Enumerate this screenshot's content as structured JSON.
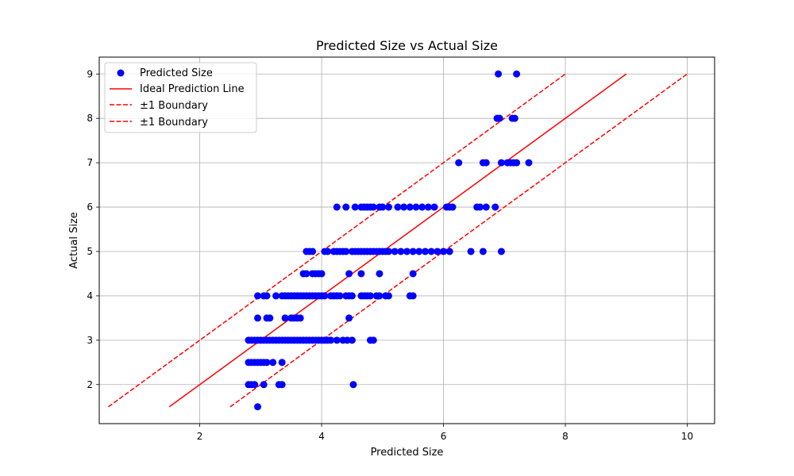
{
  "chart_data": {
    "type": "scatter",
    "title": "Predicted Size vs Actual Size",
    "xlabel": "Predicted Size",
    "ylabel": "Actual Size",
    "xlim": [
      0.35,
      10.45
    ],
    "ylim": [
      1.12,
      9.38
    ],
    "xticks": [
      2,
      4,
      6,
      8,
      10
    ],
    "yticks": [
      2,
      3,
      4,
      5,
      6,
      7,
      8,
      9
    ],
    "grid": true,
    "legend_position": "top-left",
    "legend": [
      {
        "label": "Predicted Size",
        "style": "marker"
      },
      {
        "label": "Ideal Prediction Line",
        "style": "solid"
      },
      {
        "label": "±1 Boundary",
        "style": "dashed"
      },
      {
        "label": "±1 Boundary",
        "style": "dashed"
      }
    ],
    "colors": {
      "points": "#0000ff",
      "lines": "#ff0000"
    },
    "lines": [
      {
        "name": "Ideal Prediction Line",
        "style": "solid",
        "x": [
          1.5,
          9.0
        ],
        "y": [
          1.5,
          9.0
        ]
      },
      {
        "name": "+1 Boundary",
        "style": "dashed",
        "x": [
          0.5,
          8.0
        ],
        "y": [
          1.5,
          9.0
        ]
      },
      {
        "name": "-1 Boundary",
        "style": "dashed",
        "x": [
          2.5,
          10.0
        ],
        "y": [
          1.5,
          9.0
        ]
      }
    ],
    "series": [
      {
        "name": "Predicted Size",
        "points": [
          [
            2.95,
            1.5
          ],
          [
            2.8,
            2
          ],
          [
            2.85,
            2
          ],
          [
            2.9,
            2
          ],
          [
            3.05,
            2
          ],
          [
            3.3,
            2
          ],
          [
            3.35,
            2
          ],
          [
            4.52,
            2
          ],
          [
            2.8,
            2.5
          ],
          [
            2.85,
            2.5
          ],
          [
            2.9,
            2.5
          ],
          [
            2.95,
            2.5
          ],
          [
            3.0,
            2.5
          ],
          [
            3.05,
            2.5
          ],
          [
            3.1,
            2.5
          ],
          [
            3.2,
            2.5
          ],
          [
            3.35,
            2.5
          ],
          [
            2.8,
            3
          ],
          [
            2.85,
            3
          ],
          [
            2.9,
            3
          ],
          [
            2.95,
            3
          ],
          [
            3.0,
            3
          ],
          [
            3.05,
            3
          ],
          [
            3.1,
            3
          ],
          [
            3.15,
            3
          ],
          [
            3.2,
            3
          ],
          [
            3.25,
            3
          ],
          [
            3.3,
            3
          ],
          [
            3.35,
            3
          ],
          [
            3.4,
            3
          ],
          [
            3.45,
            3
          ],
          [
            3.5,
            3
          ],
          [
            3.55,
            3
          ],
          [
            3.6,
            3
          ],
          [
            3.65,
            3
          ],
          [
            3.7,
            3
          ],
          [
            3.75,
            3
          ],
          [
            3.8,
            3
          ],
          [
            3.85,
            3
          ],
          [
            3.9,
            3
          ],
          [
            3.95,
            3
          ],
          [
            4.0,
            3
          ],
          [
            4.05,
            3
          ],
          [
            4.1,
            3
          ],
          [
            4.15,
            3
          ],
          [
            4.25,
            3
          ],
          [
            4.35,
            3
          ],
          [
            4.42,
            3
          ],
          [
            4.5,
            3
          ],
          [
            4.8,
            3
          ],
          [
            4.85,
            3
          ],
          [
            2.95,
            3.5
          ],
          [
            3.1,
            3.5
          ],
          [
            3.15,
            3.5
          ],
          [
            3.4,
            3.5
          ],
          [
            3.5,
            3.5
          ],
          [
            3.55,
            3.5
          ],
          [
            3.6,
            3.5
          ],
          [
            3.65,
            3.5
          ],
          [
            4.45,
            3.5
          ],
          [
            2.95,
            4
          ],
          [
            3.05,
            4
          ],
          [
            3.1,
            4
          ],
          [
            3.25,
            4
          ],
          [
            3.35,
            4
          ],
          [
            3.4,
            4
          ],
          [
            3.45,
            4
          ],
          [
            3.5,
            4
          ],
          [
            3.55,
            4
          ],
          [
            3.6,
            4
          ],
          [
            3.65,
            4
          ],
          [
            3.7,
            4
          ],
          [
            3.75,
            4
          ],
          [
            3.8,
            4
          ],
          [
            3.85,
            4
          ],
          [
            3.9,
            4
          ],
          [
            3.95,
            4
          ],
          [
            4.0,
            4
          ],
          [
            4.05,
            4
          ],
          [
            4.15,
            4
          ],
          [
            4.2,
            4
          ],
          [
            4.25,
            4
          ],
          [
            4.3,
            4
          ],
          [
            4.4,
            4
          ],
          [
            4.45,
            4
          ],
          [
            4.5,
            4
          ],
          [
            4.65,
            4
          ],
          [
            4.7,
            4
          ],
          [
            4.75,
            4
          ],
          [
            4.8,
            4
          ],
          [
            4.9,
            4
          ],
          [
            4.95,
            4
          ],
          [
            5.05,
            4
          ],
          [
            5.1,
            4
          ],
          [
            5.45,
            4
          ],
          [
            5.5,
            4
          ],
          [
            3.7,
            4.5
          ],
          [
            3.75,
            4.5
          ],
          [
            3.85,
            4.5
          ],
          [
            3.9,
            4.5
          ],
          [
            3.95,
            4.5
          ],
          [
            4.0,
            4.5
          ],
          [
            4.45,
            4.5
          ],
          [
            4.65,
            4.5
          ],
          [
            4.95,
            4.5
          ],
          [
            5.5,
            4.5
          ],
          [
            3.75,
            5
          ],
          [
            3.8,
            5
          ],
          [
            3.85,
            5
          ],
          [
            4.05,
            5
          ],
          [
            4.1,
            5
          ],
          [
            4.2,
            5
          ],
          [
            4.25,
            5
          ],
          [
            4.3,
            5
          ],
          [
            4.35,
            5
          ],
          [
            4.4,
            5
          ],
          [
            4.5,
            5
          ],
          [
            4.55,
            5
          ],
          [
            4.6,
            5
          ],
          [
            4.65,
            5
          ],
          [
            4.7,
            5
          ],
          [
            4.75,
            5
          ],
          [
            4.8,
            5
          ],
          [
            4.85,
            5
          ],
          [
            4.9,
            5
          ],
          [
            4.95,
            5
          ],
          [
            5.0,
            5
          ],
          [
            5.05,
            5
          ],
          [
            5.1,
            5
          ],
          [
            5.2,
            5
          ],
          [
            5.3,
            5
          ],
          [
            5.4,
            5
          ],
          [
            5.5,
            5
          ],
          [
            5.6,
            5
          ],
          [
            5.7,
            5
          ],
          [
            5.8,
            5
          ],
          [
            5.9,
            5
          ],
          [
            6.0,
            5
          ],
          [
            6.1,
            5
          ],
          [
            6.45,
            5
          ],
          [
            6.65,
            5
          ],
          [
            6.95,
            5
          ],
          [
            4.25,
            6
          ],
          [
            4.4,
            6
          ],
          [
            4.55,
            6
          ],
          [
            4.65,
            6
          ],
          [
            4.7,
            6
          ],
          [
            4.75,
            6
          ],
          [
            4.8,
            6
          ],
          [
            4.85,
            6
          ],
          [
            4.95,
            6
          ],
          [
            5.0,
            6
          ],
          [
            5.1,
            6
          ],
          [
            5.25,
            6
          ],
          [
            5.35,
            6
          ],
          [
            5.45,
            6
          ],
          [
            5.55,
            6
          ],
          [
            5.65,
            6
          ],
          [
            5.75,
            6
          ],
          [
            5.85,
            6
          ],
          [
            6.05,
            6
          ],
          [
            6.1,
            6
          ],
          [
            6.15,
            6
          ],
          [
            6.55,
            6
          ],
          [
            6.6,
            6
          ],
          [
            6.7,
            6
          ],
          [
            6.85,
            6
          ],
          [
            6.25,
            7
          ],
          [
            6.65,
            7
          ],
          [
            6.7,
            7
          ],
          [
            6.95,
            7
          ],
          [
            7.05,
            7
          ],
          [
            7.1,
            7
          ],
          [
            7.15,
            7
          ],
          [
            7.2,
            7
          ],
          [
            7.4,
            7
          ],
          [
            6.88,
            8
          ],
          [
            6.92,
            8
          ],
          [
            7.13,
            8
          ],
          [
            7.17,
            8
          ],
          [
            6.9,
            9
          ],
          [
            7.2,
            9
          ]
        ]
      }
    ]
  }
}
